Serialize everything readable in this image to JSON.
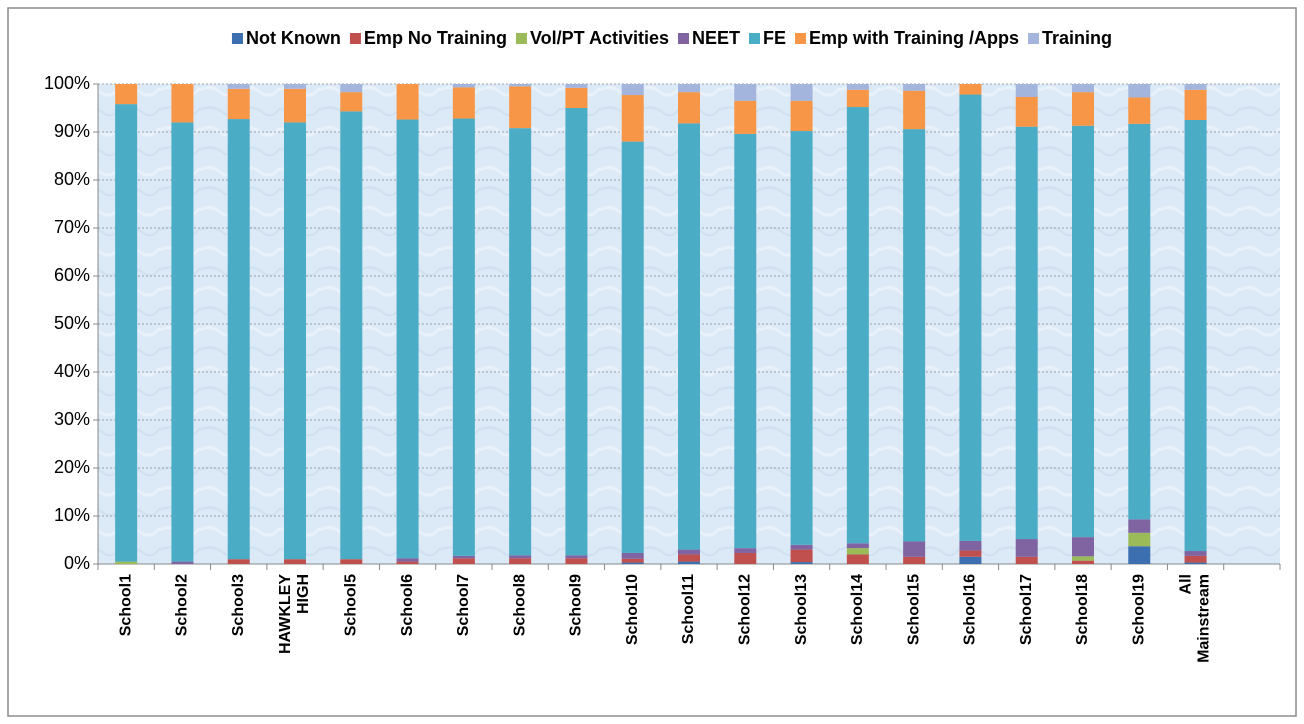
{
  "chart_data": {
    "type": "stacked_bar",
    "categories": [
      "School1",
      "School2",
      "School3",
      "HAWKLEY HIGH",
      "School5",
      "School6",
      "School7",
      "School8",
      "School9",
      "School10",
      "School11",
      "School12",
      "School13",
      "School14",
      "School15",
      "School16",
      "School17",
      "School18",
      "School19",
      "All Mainstream",
      null
    ],
    "series": [
      {
        "name": "Not Known",
        "color": "#3b6fb0",
        "values": [
          0,
          0,
          0,
          0,
          0,
          0,
          0,
          0,
          0,
          0.3,
          0.5,
          0,
          0.4,
          0,
          0,
          1.5,
          0,
          0,
          3.7,
          0.3,
          null
        ]
      },
      {
        "name": "Emp No Training",
        "color": "#c0504d",
        "values": [
          0,
          0,
          1,
          1,
          1,
          0.5,
          1.2,
          1.2,
          1.2,
          0.8,
          1.5,
          2.3,
          2.6,
          2,
          1.5,
          1.3,
          1.5,
          0.7,
          0,
          1.4,
          null
        ]
      },
      {
        "name": "Vol/PT Activities",
        "color": "#9bbb59",
        "values": [
          0.5,
          0,
          0,
          0,
          0,
          0,
          0,
          0,
          0,
          0,
          0,
          0,
          0,
          1.3,
          0,
          0,
          0,
          0.9,
          2.8,
          0,
          null
        ]
      },
      {
        "name": "NEET",
        "color": "#8064a2",
        "values": [
          0,
          0.5,
          0,
          0,
          0,
          0.7,
          0.5,
          0.6,
          0.6,
          1.2,
          1,
          1,
          1,
          1,
          3.2,
          2,
          3.7,
          4,
          2.8,
          1,
          null
        ]
      },
      {
        "name": "FE",
        "color": "#4bacc6",
        "values": [
          95.3,
          91.5,
          91.7,
          91,
          93.3,
          91.4,
          91.1,
          89,
          93.2,
          85.7,
          88.8,
          86.3,
          86.2,
          90.9,
          85.9,
          93,
          85.9,
          85.7,
          82.4,
          89.8,
          null
        ]
      },
      {
        "name": "Emp with Training /Apps",
        "color": "#f79646",
        "values": [
          4.2,
          8,
          6.3,
          7,
          4,
          7.4,
          6.5,
          8.7,
          4.2,
          9.7,
          6.5,
          6.9,
          6.3,
          3.6,
          8,
          2.2,
          6.2,
          7,
          5.5,
          6.3,
          null
        ]
      },
      {
        "name": "Training",
        "color": "#a3b5dc",
        "values": [
          0,
          0,
          1,
          1,
          1.7,
          0,
          0.7,
          0.5,
          0.8,
          2.3,
          1.7,
          3.5,
          3.5,
          1.2,
          1.4,
          0,
          2.7,
          1.7,
          2.8,
          1.2,
          null
        ]
      }
    ],
    "ylim": [
      0,
      100
    ],
    "yticks": [
      {
        "value": 0,
        "label": "0%"
      },
      {
        "value": 10,
        "label": "10%"
      },
      {
        "value": 20,
        "label": "20%"
      },
      {
        "value": 30,
        "label": "30%"
      },
      {
        "value": 40,
        "label": "40%"
      },
      {
        "value": 50,
        "label": "50%"
      },
      {
        "value": 60,
        "label": "60%"
      },
      {
        "value": 70,
        "label": "70%"
      },
      {
        "value": 80,
        "label": "80%"
      },
      {
        "value": 90,
        "label": "90%"
      },
      {
        "value": 100,
        "label": "100%"
      }
    ],
    "grid": true,
    "legend": "top"
  }
}
